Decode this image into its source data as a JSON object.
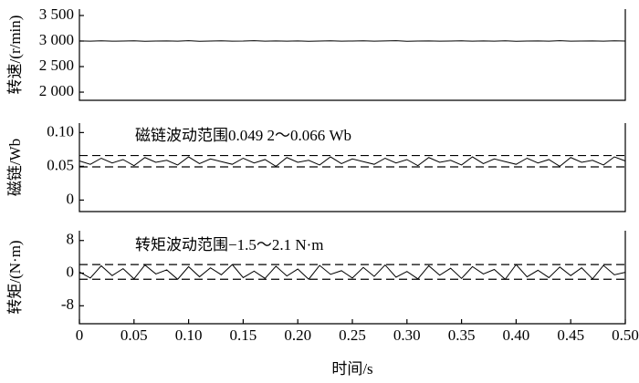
{
  "chart_data": [
    {
      "type": "line",
      "ylabel": "转速/(r/min)",
      "color": "#000000",
      "x": [
        0,
        0.01,
        0.02,
        0.03,
        0.04,
        0.05,
        0.06,
        0.07,
        0.08,
        0.09,
        0.1,
        0.11,
        0.12,
        0.13,
        0.14,
        0.15,
        0.16,
        0.17,
        0.18,
        0.19,
        0.2,
        0.21,
        0.22,
        0.23,
        0.24,
        0.25,
        0.26,
        0.27,
        0.28,
        0.29,
        0.3,
        0.31,
        0.32,
        0.33,
        0.34,
        0.35,
        0.36,
        0.37,
        0.38,
        0.39,
        0.4,
        0.41,
        0.42,
        0.43,
        0.44,
        0.45,
        0.46,
        0.47,
        0.48,
        0.49,
        0.5
      ],
      "values": [
        3002,
        2998,
        3004,
        2997,
        3001,
        3005,
        2996,
        3000,
        3003,
        2999,
        3006,
        2995,
        3001,
        3004,
        2998,
        3000,
        3007,
        2997,
        3002,
        2999,
        3003,
        2996,
        3001,
        3005,
        2998,
        3000,
        3004,
        2997,
        3002,
        3006,
        2995,
        3001,
        3003,
        2998,
        3000,
        3005,
        2997,
        3002,
        2999,
        3004,
        2996,
        3001,
        3003,
        2998,
        3006,
        2997,
        3000,
        3002,
        2999,
        3004,
        3001
      ],
      "xlim": [
        0,
        0.5
      ],
      "ylim": [
        1840,
        3625
      ],
      "yticks": [
        {
          "value": 2000,
          "label": "2 000"
        },
        {
          "value": 2500,
          "label": "2 500"
        },
        {
          "value": 3000,
          "label": "3 000"
        },
        {
          "value": 3500,
          "label": "3 500"
        }
      ]
    },
    {
      "type": "line",
      "ylabel": "磁链/Wb",
      "annotation": "磁链波动范围0.049 2～0.066 Wb",
      "color": "#000000",
      "x": [
        0,
        0.01,
        0.02,
        0.03,
        0.04,
        0.05,
        0.06,
        0.07,
        0.08,
        0.09,
        0.1,
        0.11,
        0.12,
        0.13,
        0.14,
        0.15,
        0.16,
        0.17,
        0.18,
        0.19,
        0.2,
        0.21,
        0.22,
        0.23,
        0.24,
        0.25,
        0.26,
        0.27,
        0.28,
        0.29,
        0.3,
        0.31,
        0.32,
        0.33,
        0.34,
        0.35,
        0.36,
        0.37,
        0.38,
        0.39,
        0.4,
        0.41,
        0.42,
        0.43,
        0.44,
        0.45,
        0.46,
        0.47,
        0.48,
        0.49,
        0.5
      ],
      "values": [
        0.058,
        0.053,
        0.062,
        0.055,
        0.06,
        0.051,
        0.063,
        0.056,
        0.059,
        0.052,
        0.064,
        0.054,
        0.061,
        0.057,
        0.053,
        0.062,
        0.055,
        0.06,
        0.05,
        0.063,
        0.056,
        0.059,
        0.052,
        0.064,
        0.054,
        0.061,
        0.057,
        0.053,
        0.062,
        0.055,
        0.06,
        0.051,
        0.063,
        0.056,
        0.059,
        0.052,
        0.064,
        0.054,
        0.061,
        0.057,
        0.053,
        0.062,
        0.055,
        0.06,
        0.05,
        0.063,
        0.056,
        0.059,
        0.052,
        0.064,
        0.058
      ],
      "reference_lines": [
        0.0492,
        0.066
      ],
      "xlim": [
        0,
        0.5
      ],
      "ylim": [
        -0.017,
        0.114
      ],
      "yticks": [
        0,
        0.05,
        {
          "value": 0.1,
          "label": "0.10"
        }
      ]
    },
    {
      "type": "line",
      "ylabel": "转矩/(N·m)",
      "xlabel": "时间/s",
      "annotation": "转矩波动范围−1.5～2.1 N·m",
      "color": "#000000",
      "x": [
        0,
        0.01,
        0.02,
        0.03,
        0.04,
        0.05,
        0.06,
        0.07,
        0.08,
        0.09,
        0.1,
        0.11,
        0.12,
        0.13,
        0.14,
        0.15,
        0.16,
        0.17,
        0.18,
        0.19,
        0.2,
        0.21,
        0.22,
        0.23,
        0.24,
        0.25,
        0.26,
        0.27,
        0.28,
        0.29,
        0.3,
        0.31,
        0.32,
        0.33,
        0.34,
        0.35,
        0.36,
        0.37,
        0.38,
        0.39,
        0.4,
        0.41,
        0.42,
        0.43,
        0.44,
        0.45,
        0.46,
        0.47,
        0.48,
        0.49,
        0.5
      ],
      "values": [
        0.3,
        -1.2,
        1.8,
        -0.6,
        1.1,
        -1.4,
        2.0,
        -0.2,
        0.8,
        -1.5,
        1.6,
        -0.9,
        1.3,
        -0.4,
        2.1,
        -1.1,
        0.5,
        -1.3,
        1.7,
        -0.7,
        1.0,
        -1.5,
        1.9,
        -0.3,
        0.6,
        -1.2,
        1.4,
        -0.8,
        2.0,
        -1.0,
        0.4,
        -1.4,
        1.8,
        -0.5,
        1.2,
        -1.3,
        1.6,
        -0.2,
        0.9,
        -1.5,
        2.1,
        -0.9,
        0.7,
        -1.1,
        1.5,
        -0.6,
        1.3,
        -1.4,
        1.9,
        -0.4,
        0.2
      ],
      "reference_lines": [
        -1.5,
        2.1
      ],
      "xlim": [
        0,
        0.5
      ],
      "ylim": [
        -12.4,
        10.4
      ],
      "yticks": [
        -8,
        0,
        8
      ],
      "xticks": [
        0,
        0.05,
        {
          "value": 0.1,
          "label": "0.10"
        },
        0.15,
        {
          "value": 0.2,
          "label": "0.20"
        },
        0.25,
        {
          "value": 0.3,
          "label": "0.30"
        },
        0.35,
        {
          "value": 0.4,
          "label": "0.40"
        },
        0.45,
        {
          "value": 0.5,
          "label": "0.50"
        }
      ]
    }
  ]
}
